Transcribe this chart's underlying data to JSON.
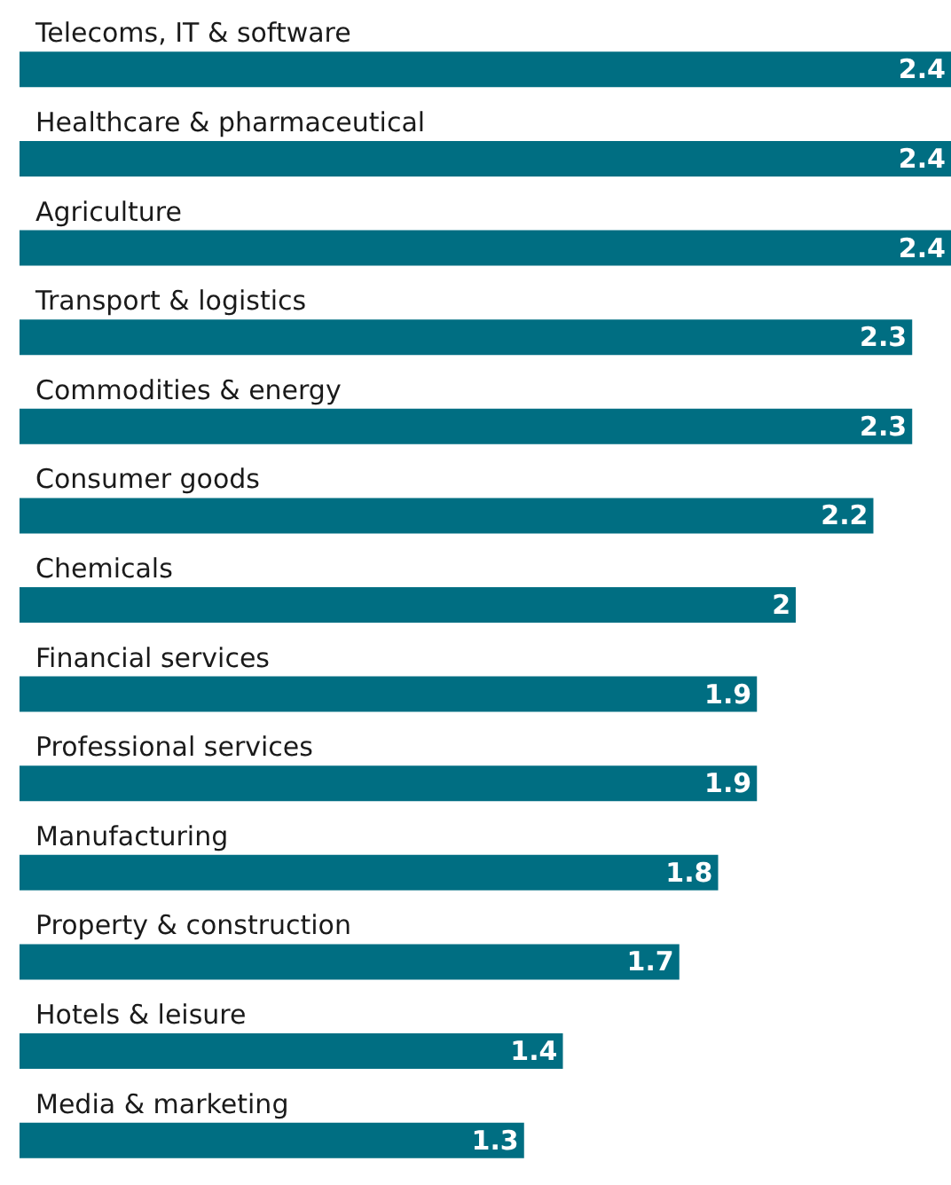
{
  "chart_data": {
    "type": "bar",
    "orientation": "horizontal",
    "categories": [
      "Telecoms, IT & software",
      "Healthcare & pharmaceutical",
      "Agriculture",
      "Transport & logistics",
      "Commodities & energy",
      "Consumer goods",
      "Chemicals",
      "Financial services",
      "Professional services",
      "Manufacturing",
      "Property & construction",
      "Hotels & leisure",
      "Media & marketing"
    ],
    "values": [
      2.4,
      2.4,
      2.4,
      2.3,
      2.3,
      2.2,
      2,
      1.9,
      1.9,
      1.8,
      1.7,
      1.4,
      1.3
    ],
    "color": "#006e82",
    "data_labels": true
  }
}
